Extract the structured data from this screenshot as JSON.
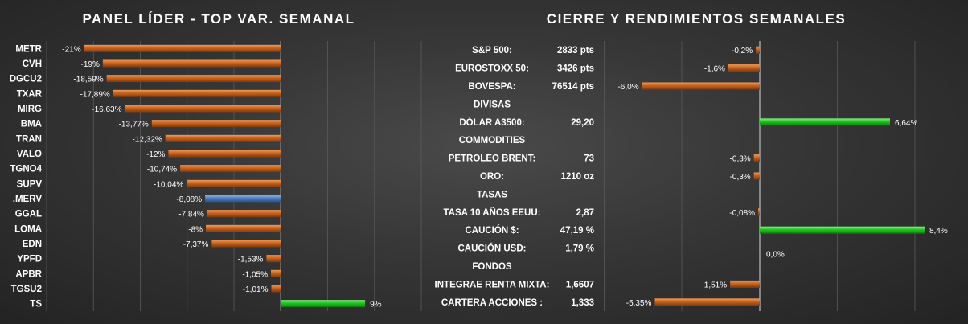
{
  "chart_data": [
    {
      "type": "bar",
      "orientation": "horizontal",
      "title": "PANEL LÍDER - TOP VAR. SEMANAL",
      "categories": [
        "METR",
        "CVH",
        "DGCU2",
        "TXAR",
        "MIRG",
        "BMA",
        "TRAN",
        "VALO",
        "TGNO4",
        "SUPV",
        ".MERV",
        "GGAL",
        "LOMA",
        "EDN",
        "YPFD",
        "APBR",
        "TGSU2",
        "TS"
      ],
      "values": [
        -21,
        -19,
        -18.59,
        -17.89,
        -16.63,
        -13.77,
        -12.32,
        -12,
        -10.74,
        -10.04,
        -8.08,
        -7.84,
        -8,
        -7.37,
        -1.53,
        -1.05,
        -1.01,
        9
      ],
      "data_labels": [
        "-21%",
        "-19%",
        "-18,59%",
        "-17,89%",
        "-16,63%",
        "-13,77%",
        "-12,32%",
        "-12%",
        "-10,74%",
        "-10,04%",
        "-8,08%",
        "-7,84%",
        "-8%",
        "-7,37%",
        "-1,53%",
        "-1,05%",
        "-1,01%",
        "9%"
      ],
      "highlight_category": ".MERV",
      "xlim": [
        -25,
        15
      ],
      "grid": true,
      "colors": {
        "negative": "#c5621e",
        "positive": "#22c322",
        "highlight": "#4f7fbf"
      }
    },
    {
      "type": "bar",
      "orientation": "horizontal",
      "title": "CIERRE Y RENDIMIENTOS  SEMANALES",
      "rows": [
        {
          "kind": "item",
          "label": "S&P 500:",
          "value": "2833 pts",
          "pct": -0.2,
          "pct_label": "-0,2%"
        },
        {
          "kind": "item",
          "label": "EUROSTOXX 50:",
          "value": "3426 pts",
          "pct": -1.6,
          "pct_label": "-1,6%"
        },
        {
          "kind": "item",
          "label": "BOVESPA:",
          "value": "76514 pts",
          "pct": -6.0,
          "pct_label": "-6,0%"
        },
        {
          "kind": "section",
          "label": "DIVISAS"
        },
        {
          "kind": "item",
          "label": "DÓLAR A3500:",
          "value": "29,20",
          "pct": 6.64,
          "pct_label": "6,64%"
        },
        {
          "kind": "section",
          "label": "COMMODITIES"
        },
        {
          "kind": "item",
          "label": "PETROLEO BRENT:",
          "value": "73",
          "pct": -0.3,
          "pct_label": "-0,3%"
        },
        {
          "kind": "item",
          "label": "ORO:",
          "value": "1210 oz",
          "pct": -0.3,
          "pct_label": "-0,3%"
        },
        {
          "kind": "section",
          "label": "TASAS"
        },
        {
          "kind": "item",
          "label": "TASA 10 AÑOS EEUU:",
          "value": "2,87",
          "pct": -0.08,
          "pct_label": "-0,08%"
        },
        {
          "kind": "item",
          "label": "CAUCIÓN $:",
          "value": "47,19 %",
          "pct": 8.4,
          "pct_label": "8,4%"
        },
        {
          "kind": "item",
          "label": "CAUCIÓN USD:",
          "value": "1,79 %",
          "pct": 0.0,
          "pct_label": "0,0%"
        },
        {
          "kind": "section",
          "label": "FONDOS"
        },
        {
          "kind": "item",
          "label": "INTEGRAE RENTA MIXTA:",
          "value": "1,6607",
          "pct": -1.51,
          "pct_label": "-1,51%"
        },
        {
          "kind": "item",
          "label": "CARTERA ACCIONES :",
          "value": "1,333",
          "pct": -5.35,
          "pct_label": "-5,35%"
        }
      ],
      "xlim": [
        -10,
        10
      ],
      "grid": true,
      "colors": {
        "negative": "#c5621e",
        "positive": "#22c322"
      }
    }
  ]
}
